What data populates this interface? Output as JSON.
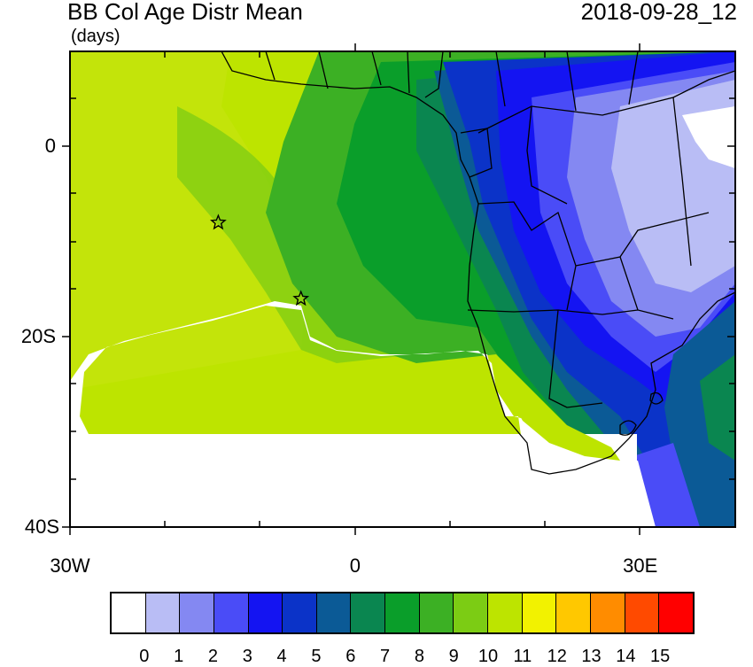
{
  "title": "BB Col Age Distr Mean",
  "units": "(days)",
  "datetime": "2018-09-28_12",
  "y_axis_labels": [
    {
      "text": "0",
      "lat": 0
    },
    {
      "text": "20S",
      "lat": -20
    },
    {
      "text": "40S",
      "lat": -40
    }
  ],
  "x_axis_labels": [
    {
      "text": "30W",
      "lon": -30
    },
    {
      "text": "0",
      "lon": 0
    },
    {
      "text": "30E",
      "lon": 30
    }
  ],
  "map_extent": {
    "lon_min": -30,
    "lon_max": 40,
    "lat_min": -40,
    "lat_max": 10
  },
  "markers": [
    {
      "name": "star-marker-1",
      "lon": -14.4,
      "lat": -8.0
    },
    {
      "name": "star-marker-2",
      "lon": -5.7,
      "lat": -16.0
    }
  ],
  "colorbar": {
    "labels": [
      "0",
      "1",
      "2",
      "3",
      "4",
      "5",
      "6",
      "7",
      "8",
      "9",
      "10",
      "11",
      "12",
      "13",
      "14",
      "15"
    ],
    "colors": [
      "#ffffff",
      "#b9bdf5",
      "#8488f2",
      "#4a4cf7",
      "#1414f2",
      "#0b33c8",
      "#0b5a96",
      "#0a8650",
      "#0a9e2a",
      "#3cb024",
      "#7ccc14",
      "#bde400",
      "#f2f200",
      "#ffc800",
      "#ff8c00",
      "#ff4a00",
      "#ff0000"
    ]
  }
}
